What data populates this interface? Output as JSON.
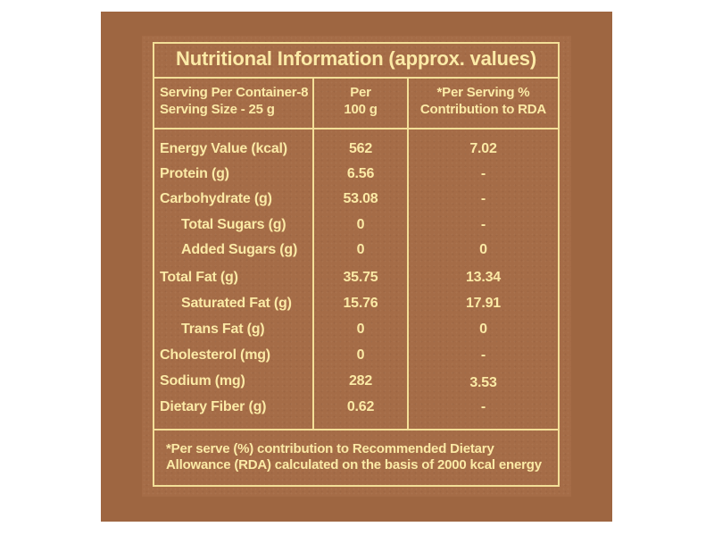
{
  "title": "Nutritional Information (approx. values)",
  "header": {
    "serving_per_container": "Serving Per Container-8",
    "serving_size": "Serving Size - 25 g",
    "per_line1": "Per",
    "per_line2": "100 g",
    "rda_line1": "*Per Serving %",
    "rda_line2": "Contribution to RDA"
  },
  "rows": [
    {
      "label": "Energy Value (kcal)",
      "per100": "562",
      "rda": "7.02"
    },
    {
      "label": "Protein (g)",
      "per100": "6.56",
      "rda": "-"
    },
    {
      "label": "Carbohydrate (g)",
      "per100": "53.08",
      "rda": "-"
    },
    {
      "label": "Total Sugars (g)",
      "per100": "0",
      "rda": "-"
    },
    {
      "label": "Added Sugars (g)",
      "per100": "0",
      "rda": "0"
    },
    {
      "label": "Total Fat (g)",
      "per100": "35.75",
      "rda": "13.34"
    },
    {
      "label": "Saturated Fat (g)",
      "per100": "15.76",
      "rda": "17.91"
    },
    {
      "label": "Trans Fat (g)",
      "per100": "0",
      "rda": "0"
    },
    {
      "label": "Cholesterol (mg)",
      "per100": "0",
      "rda": "-"
    },
    {
      "label": "Sodium (mg)",
      "per100": "282",
      "rda": "3.53"
    },
    {
      "label": "Dietary Fiber (g)",
      "per100": "0.62",
      "rda": "-"
    }
  ],
  "footnote": {
    "line1": "*Per serve (%) contribution to Recommended Dietary",
    "line2": "Allowance (RDA) calculated on the basis of 2000 kcal energy"
  },
  "colors": {
    "background_outer": "#9e6641",
    "panel": "#a56c47",
    "text": "#fbeaa6",
    "lines": "#f3df98"
  }
}
